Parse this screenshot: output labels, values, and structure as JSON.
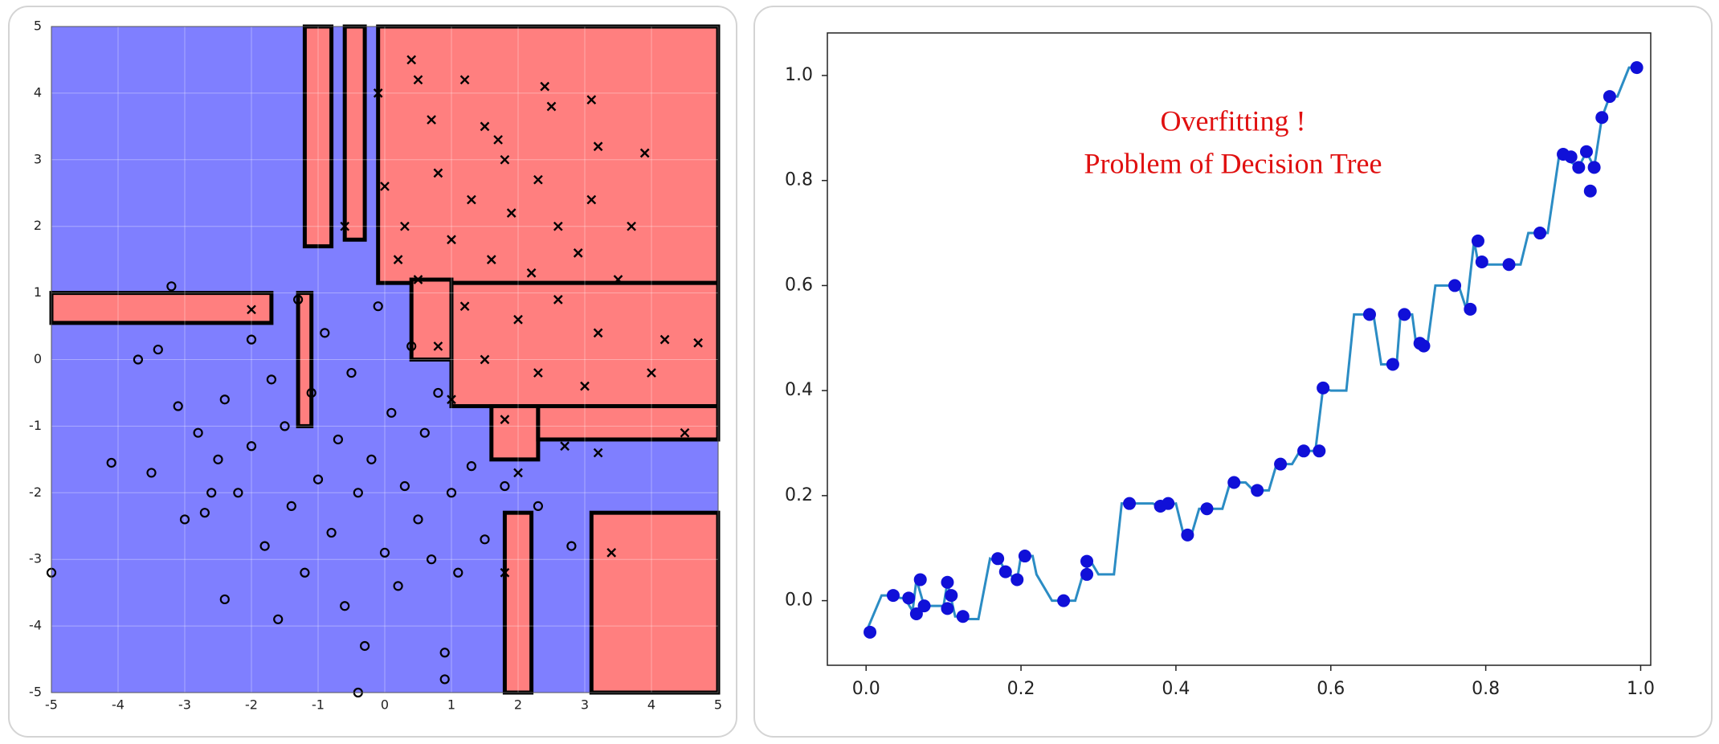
{
  "chart_data": [
    {
      "type": "scatter",
      "xlim": [
        -5,
        5
      ],
      "ylim": [
        -5,
        5
      ],
      "xticks": [
        -5,
        -4,
        -3,
        -2,
        -1,
        0,
        1,
        2,
        3,
        4,
        5
      ],
      "yticks": [
        -5,
        -4,
        -3,
        -2,
        -1,
        0,
        1,
        2,
        3,
        4,
        5
      ],
      "grid": true,
      "background": "#7f7fff",
      "regions": {
        "color": "#ff7f7f",
        "rects": [
          [
            -1.2,
            -0.8,
            1.7,
            5
          ],
          [
            -0.6,
            -0.3,
            1.8,
            5
          ],
          [
            -0.1,
            5,
            1.15,
            5
          ],
          [
            -5,
            -1.7,
            0.55,
            1.0
          ],
          [
            1.0,
            5,
            -0.7,
            1.15
          ],
          [
            1.6,
            2.3,
            -1.5,
            -0.7
          ],
          [
            2.3,
            5,
            -1.2,
            -0.7
          ],
          [
            1.8,
            2.2,
            -5,
            -2.3
          ],
          [
            3.1,
            5,
            -5,
            -2.3
          ],
          [
            -1.3,
            -1.1,
            -1.0,
            1.0
          ],
          [
            0.4,
            1.0,
            0.0,
            1.2
          ]
        ]
      },
      "series": [
        {
          "marker": "o",
          "color": "#000000",
          "x": [
            -4.1,
            -3.5,
            -3.7,
            -3.4,
            -3.2,
            -3.1,
            -2.8,
            -2.7,
            -2.5,
            -2.4,
            -2.2,
            -2.0,
            -2.0,
            -1.8,
            -1.7,
            -1.6,
            -1.5,
            -1.4,
            -1.2,
            -1.1,
            -1.0,
            -0.9,
            -0.8,
            -0.7,
            -0.6,
            -0.5,
            -0.4,
            -0.3,
            -0.2,
            -0.1,
            0.0,
            0.1,
            0.2,
            0.3,
            0.4,
            0.5,
            0.6,
            0.7,
            0.8,
            0.9,
            1.0,
            1.1,
            1.3,
            1.5,
            1.8,
            2.3,
            2.8,
            -5,
            -0.4,
            0.9,
            -3.0,
            -2.6,
            -1.3,
            -2.4
          ],
          "y": [
            -1.55,
            -1.7,
            0.0,
            0.15,
            1.1,
            -0.7,
            -1.1,
            -2.3,
            -1.5,
            -3.6,
            -2.0,
            -1.3,
            0.3,
            -2.8,
            -0.3,
            -3.9,
            -1.0,
            -2.2,
            -3.2,
            -0.5,
            -1.8,
            0.4,
            -2.6,
            -1.2,
            -3.7,
            -0.2,
            -2.0,
            -4.3,
            -1.5,
            0.8,
            -2.9,
            -0.8,
            -3.4,
            -1.9,
            0.2,
            -2.4,
            -1.1,
            -3.0,
            -0.5,
            -4.4,
            -2.0,
            -3.2,
            -1.6,
            -2.7,
            -1.9,
            -2.2,
            -2.8,
            -3.2,
            -5,
            -4.8,
            -2.4,
            -2.0,
            0.9,
            -0.6
          ]
        },
        {
          "marker": "x",
          "color": "#000000",
          "x": [
            -2.0,
            3.4,
            1.8,
            0.4,
            0.5,
            1.2,
            2.4,
            2.5,
            3.1,
            -0.1,
            0.7,
            1.5,
            1.8,
            2.3,
            3.2,
            3.9,
            0.0,
            0.8,
            1.3,
            1.9,
            2.6,
            3.1,
            3.7,
            -0.6,
            0.3,
            1.0,
            1.6,
            2.2,
            2.9,
            3.5,
            0.5,
            1.2,
            2.0,
            2.6,
            3.2,
            4.2,
            4.7,
            0.8,
            1.5,
            2.3,
            3.0,
            4.0,
            1.0,
            1.8,
            2.7,
            3.2,
            4.5,
            2.0,
            0.2,
            1.7
          ],
          "y": [
            0.75,
            -2.9,
            -3.2,
            4.5,
            4.2,
            4.2,
            4.1,
            3.8,
            3.9,
            4.0,
            3.6,
            3.5,
            3.0,
            2.7,
            3.2,
            3.1,
            2.6,
            2.8,
            2.4,
            2.2,
            2.0,
            2.4,
            2.0,
            2.0,
            2.0,
            1.8,
            1.5,
            1.3,
            1.6,
            1.2,
            1.2,
            0.8,
            0.6,
            0.9,
            0.4,
            0.3,
            0.25,
            0.2,
            0.0,
            -0.2,
            -0.4,
            -0.2,
            -0.6,
            -0.9,
            -1.3,
            -1.4,
            -1.1,
            -1.7,
            1.5,
            3.3
          ]
        }
      ]
    },
    {
      "type": "line",
      "annotation": [
        "Overfitting !",
        "Problem of Decision Tree"
      ],
      "annotation_color": "#e01010",
      "xlim": [
        -0.05,
        1.013
      ],
      "ylim": [
        -0.123,
        1.081
      ],
      "xticks": [
        {
          "value": 0,
          "label": "0.0"
        },
        {
          "value": 0.2,
          "label": "0.2"
        },
        {
          "value": 0.4,
          "label": "0.4"
        },
        {
          "value": 0.6,
          "label": "0.6"
        },
        {
          "value": 0.8,
          "label": "0.8"
        },
        {
          "value": 1,
          "label": "1.0"
        }
      ],
      "yticks": [
        {
          "value": 0,
          "label": "0.0"
        },
        {
          "value": 0.2,
          "label": "0.2"
        },
        {
          "value": 0.4,
          "label": "0.4"
        },
        {
          "value": 0.6,
          "label": "0.6"
        },
        {
          "value": 0.8,
          "label": "0.8"
        },
        {
          "value": 1,
          "label": "1.0"
        }
      ],
      "series": [
        {
          "mode": "points",
          "color": "#1010d8",
          "x": [
            0.005,
            0.035,
            0.055,
            0.065,
            0.07,
            0.075,
            0.105,
            0.105,
            0.11,
            0.125,
            0.17,
            0.18,
            0.195,
            0.205,
            0.255,
            0.285,
            0.285,
            0.34,
            0.38,
            0.39,
            0.415,
            0.44,
            0.475,
            0.505,
            0.535,
            0.565,
            0.585,
            0.59,
            0.65,
            0.68,
            0.695,
            0.715,
            0.72,
            0.76,
            0.78,
            0.79,
            0.795,
            0.83,
            0.87,
            0.9,
            0.91,
            0.92,
            0.93,
            0.935,
            0.94,
            0.95,
            0.96,
            0.995
          ],
          "y": [
            -0.06,
            0.01,
            0.005,
            -0.025,
            0.04,
            -0.01,
            -0.015,
            0.035,
            0.01,
            -0.03,
            0.08,
            0.055,
            0.04,
            0.085,
            0.0,
            0.05,
            0.075,
            0.185,
            0.18,
            0.185,
            0.125,
            0.175,
            0.225,
            0.21,
            0.26,
            0.285,
            0.285,
            0.405,
            0.545,
            0.45,
            0.545,
            0.49,
            0.485,
            0.6,
            0.555,
            0.685,
            0.645,
            0.64,
            0.7,
            0.85,
            0.845,
            0.825,
            0.855,
            0.78,
            0.825,
            0.92,
            0.96,
            1.015
          ]
        },
        {
          "mode": "line",
          "color": "#2b8cc4",
          "x": [
            0,
            0.02,
            0.03,
            0.045,
            0.05,
            0.06,
            0.065,
            0.075,
            0.08,
            0.1,
            0.105,
            0.115,
            0.12,
            0.13,
            0.145,
            0.16,
            0.175,
            0.18,
            0.195,
            0.2,
            0.215,
            0.22,
            0.24,
            0.25,
            0.27,
            0.28,
            0.29,
            0.3,
            0.32,
            0.33,
            0.37,
            0.38,
            0.4,
            0.41,
            0.42,
            0.43,
            0.46,
            0.47,
            0.49,
            0.5,
            0.52,
            0.53,
            0.55,
            0.56,
            0.575,
            0.58,
            0.59,
            0.6,
            0.62,
            0.63,
            0.655,
            0.665,
            0.685,
            0.69,
            0.705,
            0.71,
            0.725,
            0.735,
            0.765,
            0.775,
            0.785,
            0.79,
            0.8,
            0.81,
            0.845,
            0.855,
            0.88,
            0.895,
            0.9,
            0.92,
            0.93,
            0.94,
            0.95,
            0.96,
            0.97,
            0.985,
            1.0
          ],
          "y": [
            -0.06,
            0.01,
            0.01,
            0.005,
            0.005,
            -0.02,
            0.04,
            -0.01,
            -0.01,
            -0.01,
            0.035,
            -0.03,
            -0.03,
            -0.035,
            -0.035,
            0.08,
            0.07,
            0.055,
            0.04,
            0.085,
            0.085,
            0.05,
            0.0,
            0.0,
            0.0,
            0.05,
            0.075,
            0.05,
            0.05,
            0.185,
            0.185,
            0.18,
            0.185,
            0.125,
            0.125,
            0.175,
            0.175,
            0.225,
            0.225,
            0.21,
            0.21,
            0.26,
            0.26,
            0.285,
            0.285,
            0.285,
            0.405,
            0.4,
            0.4,
            0.545,
            0.545,
            0.45,
            0.45,
            0.545,
            0.545,
            0.49,
            0.49,
            0.6,
            0.6,
            0.555,
            0.685,
            0.645,
            0.64,
            0.64,
            0.64,
            0.7,
            0.7,
            0.85,
            0.845,
            0.825,
            0.855,
            0.825,
            0.92,
            0.96,
            0.96,
            1.015,
            1.015
          ]
        }
      ]
    }
  ]
}
